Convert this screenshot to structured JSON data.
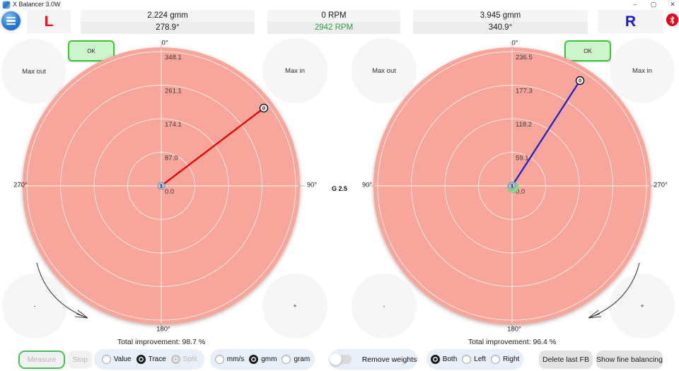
{
  "window": {
    "title": "X Balancer 3.0W",
    "minimize": "–",
    "maximize": "▢",
    "close": "✕"
  },
  "header": {
    "left_channel": "L",
    "right_channel": "R",
    "left_readout": {
      "value": "2.224 gmm",
      "angle": "278.9°"
    },
    "rpm_readout": {
      "primary": "0 RPM",
      "secondary": "2942 RPM"
    },
    "right_readout": {
      "value": "3.945 gmm",
      "angle": "340.9°"
    },
    "colors": {
      "left_channel": "#e81222",
      "right_channel": "#1616e0",
      "rpm_active": "#2f9e46"
    }
  },
  "center_label": "G 2.5",
  "chart_controls": {
    "ok": "OK",
    "max_out": "Max out",
    "max_in": "Max in",
    "decrease": "-",
    "increase": "+"
  },
  "chart_data": [
    {
      "type": "polar-trace",
      "side": "left",
      "units": "gmm",
      "angle_labels": {
        "top": "0°",
        "right": "90°",
        "bottom": "180°",
        "left": "270°"
      },
      "radial_tick_labels": [
        "0.0",
        "87.0",
        "174.1",
        "261.1",
        "348.1"
      ],
      "radial_ticks": [
        0,
        87.0,
        174.1,
        261.1,
        348.1
      ],
      "trace": {
        "color": "#e60000",
        "screen_angle_deg": 52.8,
        "radius_frac": 0.958,
        "end_marker": "0"
      },
      "center_marker": {
        "label": "1",
        "color": "#a9c6e6",
        "halo": ""
      },
      "total_improvement": "Total improvement: 98.7 %"
    },
    {
      "type": "polar-trace",
      "side": "right",
      "units": "gmm",
      "angle_labels": {
        "top": "0°",
        "right": "270°",
        "bottom": "180°",
        "left": "90°"
      },
      "radial_tick_labels": [
        "0.0",
        "59.1",
        "118.2",
        "177.3",
        "236.5"
      ],
      "radial_ticks": [
        0,
        59.1,
        118.2,
        177.3,
        236.5
      ],
      "trace": {
        "color": "#2121cf",
        "screen_angle_deg": 32.8,
        "radius_frac": 0.933,
        "end_marker": "0"
      },
      "center_marker": {
        "label": "1",
        "color": "#a9c6e6",
        "halo": "#8fdd8f"
      },
      "total_improvement": "Total improvement: 96.4 %"
    }
  ],
  "toolbar": {
    "measure": "Measure",
    "stop": "Stop",
    "display_mode": {
      "options": [
        "Value",
        "Trace",
        "Split"
      ],
      "selected": "Trace",
      "disabled": [
        "Split"
      ]
    },
    "units": {
      "options": [
        "mm/s",
        "gmm",
        "gram"
      ],
      "selected": "gmm",
      "disabled": []
    },
    "remove_weights": {
      "label": "Remove weights",
      "on": false
    },
    "channel": {
      "options": [
        "Both",
        "Left",
        "Right"
      ],
      "selected": "Both",
      "disabled": []
    },
    "delete_last_fb": "Delete last FB",
    "show_fine_balancing": "Show fine balancing"
  }
}
